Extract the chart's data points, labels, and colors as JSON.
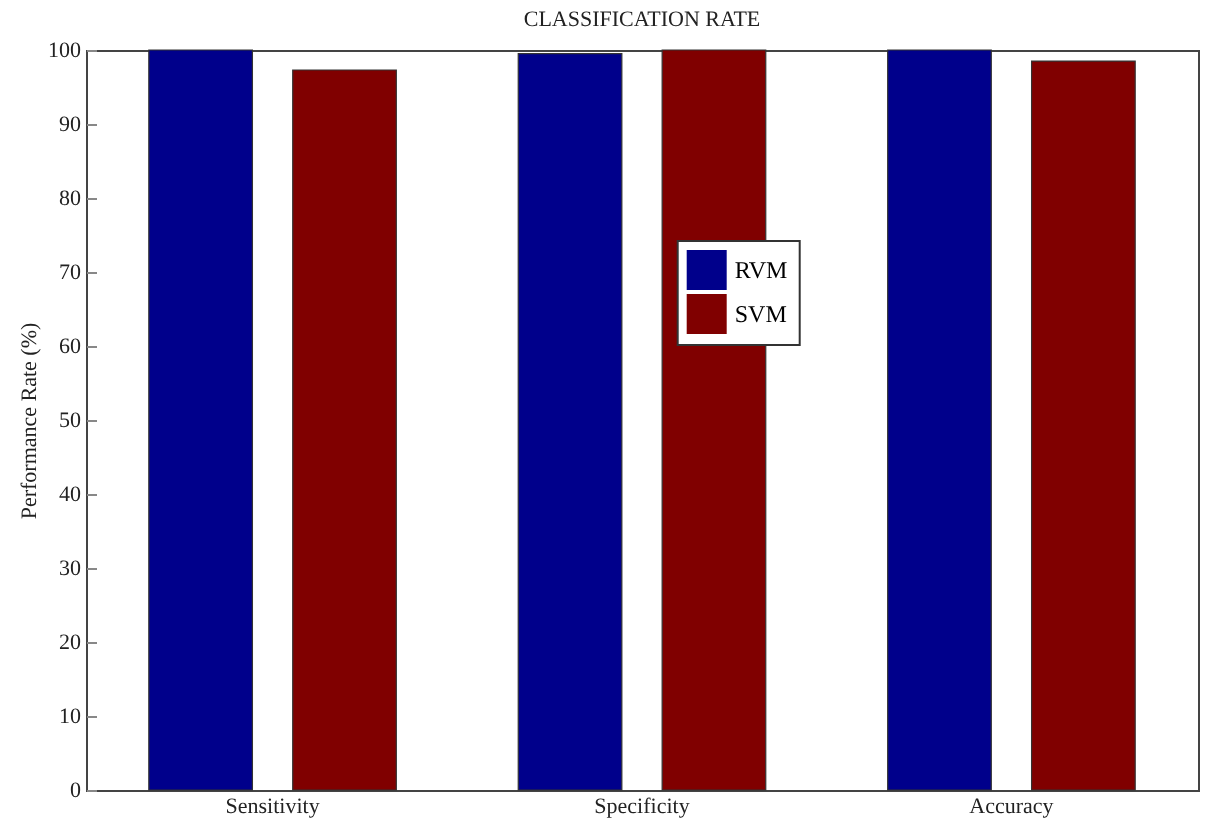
{
  "chart_data": {
    "type": "bar",
    "title": "CLASSIFICATION RATE",
    "ylabel": "Performance Rate (%)",
    "categories": [
      "Sensitivity",
      "Specificity",
      "Accuracy"
    ],
    "series": [
      {
        "name": "RVM",
        "color": "#00008b",
        "values": [
          100,
          99.5,
          100
        ]
      },
      {
        "name": "SVM",
        "color": "#800000",
        "values": [
          97.3,
          100,
          98.5
        ]
      }
    ],
    "ylim": [
      0,
      100
    ],
    "yticks": [
      0,
      10,
      20,
      30,
      40,
      50,
      60,
      70,
      80,
      90,
      100
    ],
    "grid": false,
    "legend": "top"
  }
}
